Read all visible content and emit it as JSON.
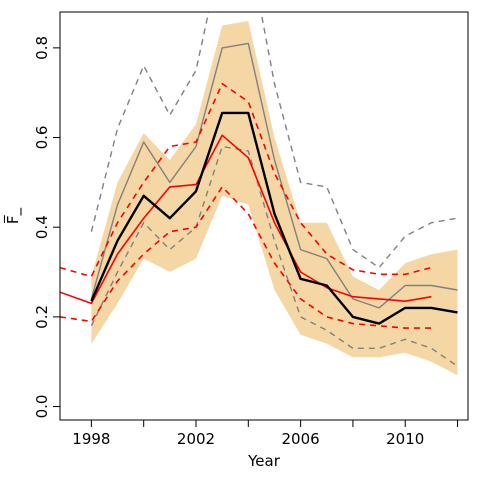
{
  "chart_data": {
    "type": "line",
    "title": "",
    "xlabel": "Year",
    "ylabel": "F̅_",
    "xlim": [
      1996.8,
      2012.4
    ],
    "ylim": [
      -0.03,
      0.88
    ],
    "x_ticks": [
      1998,
      2000,
      2002,
      2004,
      2006,
      2008,
      2010,
      2012
    ],
    "x_tick_labels": [
      "1998",
      "",
      "2002",
      "",
      "2006",
      "",
      "2010",
      ""
    ],
    "y_ticks": [
      0.0,
      0.2,
      0.4,
      0.6,
      0.8
    ],
    "y_tick_labels": [
      "0.0",
      "0.2",
      "0.4",
      "0.6",
      "0.8"
    ],
    "grid": false,
    "legend": "none",
    "band": {
      "color": "#f5d7a6",
      "x": [
        1998,
        1999,
        2000,
        2001,
        2002,
        2003,
        2004,
        2005,
        2006,
        2007,
        2008,
        2009,
        2010,
        2011,
        2012
      ],
      "lower": [
        0.14,
        0.23,
        0.33,
        0.3,
        0.33,
        0.47,
        0.45,
        0.26,
        0.16,
        0.14,
        0.11,
        0.11,
        0.12,
        0.1,
        0.07
      ],
      "upper": [
        0.29,
        0.5,
        0.61,
        0.55,
        0.63,
        0.85,
        0.86,
        0.6,
        0.41,
        0.41,
        0.29,
        0.26,
        0.32,
        0.34,
        0.35
      ]
    },
    "series": [
      {
        "color": "#808080",
        "style": "solid",
        "width": 1.4,
        "x": [
          1998,
          1999,
          2000,
          2001,
          2002,
          2003,
          2004,
          2005,
          2006,
          2007,
          2008,
          2009,
          2010,
          2011,
          2012
        ],
        "values": [
          0.24,
          0.45,
          0.59,
          0.5,
          0.58,
          0.8,
          0.81,
          0.55,
          0.35,
          0.33,
          0.24,
          0.22,
          0.27,
          0.27,
          0.26
        ]
      },
      {
        "color": "#808080",
        "style": "dashed",
        "width": 1.4,
        "x": [
          1998,
          1999,
          2000,
          2001,
          2002,
          2003,
          2004,
          2005,
          2006,
          2007,
          2008,
          2009,
          2010,
          2011,
          2012
        ],
        "values": [
          0.39,
          0.62,
          0.76,
          0.65,
          0.75,
          1.02,
          1.03,
          0.72,
          0.5,
          0.49,
          0.35,
          0.31,
          0.38,
          0.41,
          0.42
        ]
      },
      {
        "color": "#808080",
        "style": "dashed",
        "width": 1.4,
        "x": [
          1998,
          1999,
          2000,
          2001,
          2002,
          2003,
          2004,
          2005,
          2006,
          2007,
          2008,
          2009,
          2010,
          2011,
          2012
        ],
        "values": [
          0.18,
          0.3,
          0.41,
          0.35,
          0.4,
          0.58,
          0.57,
          0.37,
          0.2,
          0.17,
          0.13,
          0.13,
          0.15,
          0.13,
          0.09
        ]
      },
      {
        "color": "#ff0000",
        "style": "solid",
        "width": 1.6,
        "x": [
          1996.8,
          1998,
          1999,
          2000,
          2001,
          2002,
          2003,
          2004,
          2005,
          2006,
          2007,
          2008,
          2009,
          2010,
          2011
        ],
        "values": [
          0.255,
          0.23,
          0.34,
          0.42,
          0.49,
          0.495,
          0.605,
          0.555,
          0.41,
          0.3,
          0.265,
          0.245,
          0.24,
          0.235,
          0.245
        ]
      },
      {
        "color": "#ff0000",
        "style": "dashed",
        "width": 1.6,
        "x": [
          1996.8,
          1998,
          1999,
          2000,
          2001,
          2002,
          2003,
          2004,
          2005,
          2006,
          2007,
          2008,
          2009,
          2010,
          2011
        ],
        "values": [
          0.31,
          0.29,
          0.41,
          0.5,
          0.58,
          0.59,
          0.72,
          0.68,
          0.52,
          0.41,
          0.34,
          0.305,
          0.295,
          0.295,
          0.31
        ]
      },
      {
        "color": "#ff0000",
        "style": "dashed",
        "width": 1.6,
        "x": [
          1996.8,
          1998,
          1999,
          2000,
          2001,
          2002,
          2003,
          2004,
          2005,
          2006,
          2007,
          2008,
          2009,
          2010,
          2011
        ],
        "values": [
          0.2,
          0.19,
          0.28,
          0.34,
          0.39,
          0.4,
          0.49,
          0.43,
          0.32,
          0.24,
          0.2,
          0.185,
          0.18,
          0.175,
          0.175
        ]
      },
      {
        "color": "#000000",
        "style": "solid",
        "width": 2.4,
        "x": [
          1998,
          1999,
          2000,
          2001,
          2002,
          2003,
          2004,
          2005,
          2006,
          2007,
          2008,
          2009,
          2010,
          2011,
          2012
        ],
        "values": [
          0.235,
          0.37,
          0.47,
          0.42,
          0.48,
          0.655,
          0.655,
          0.43,
          0.285,
          0.27,
          0.2,
          0.185,
          0.22,
          0.22,
          0.21
        ]
      }
    ]
  }
}
